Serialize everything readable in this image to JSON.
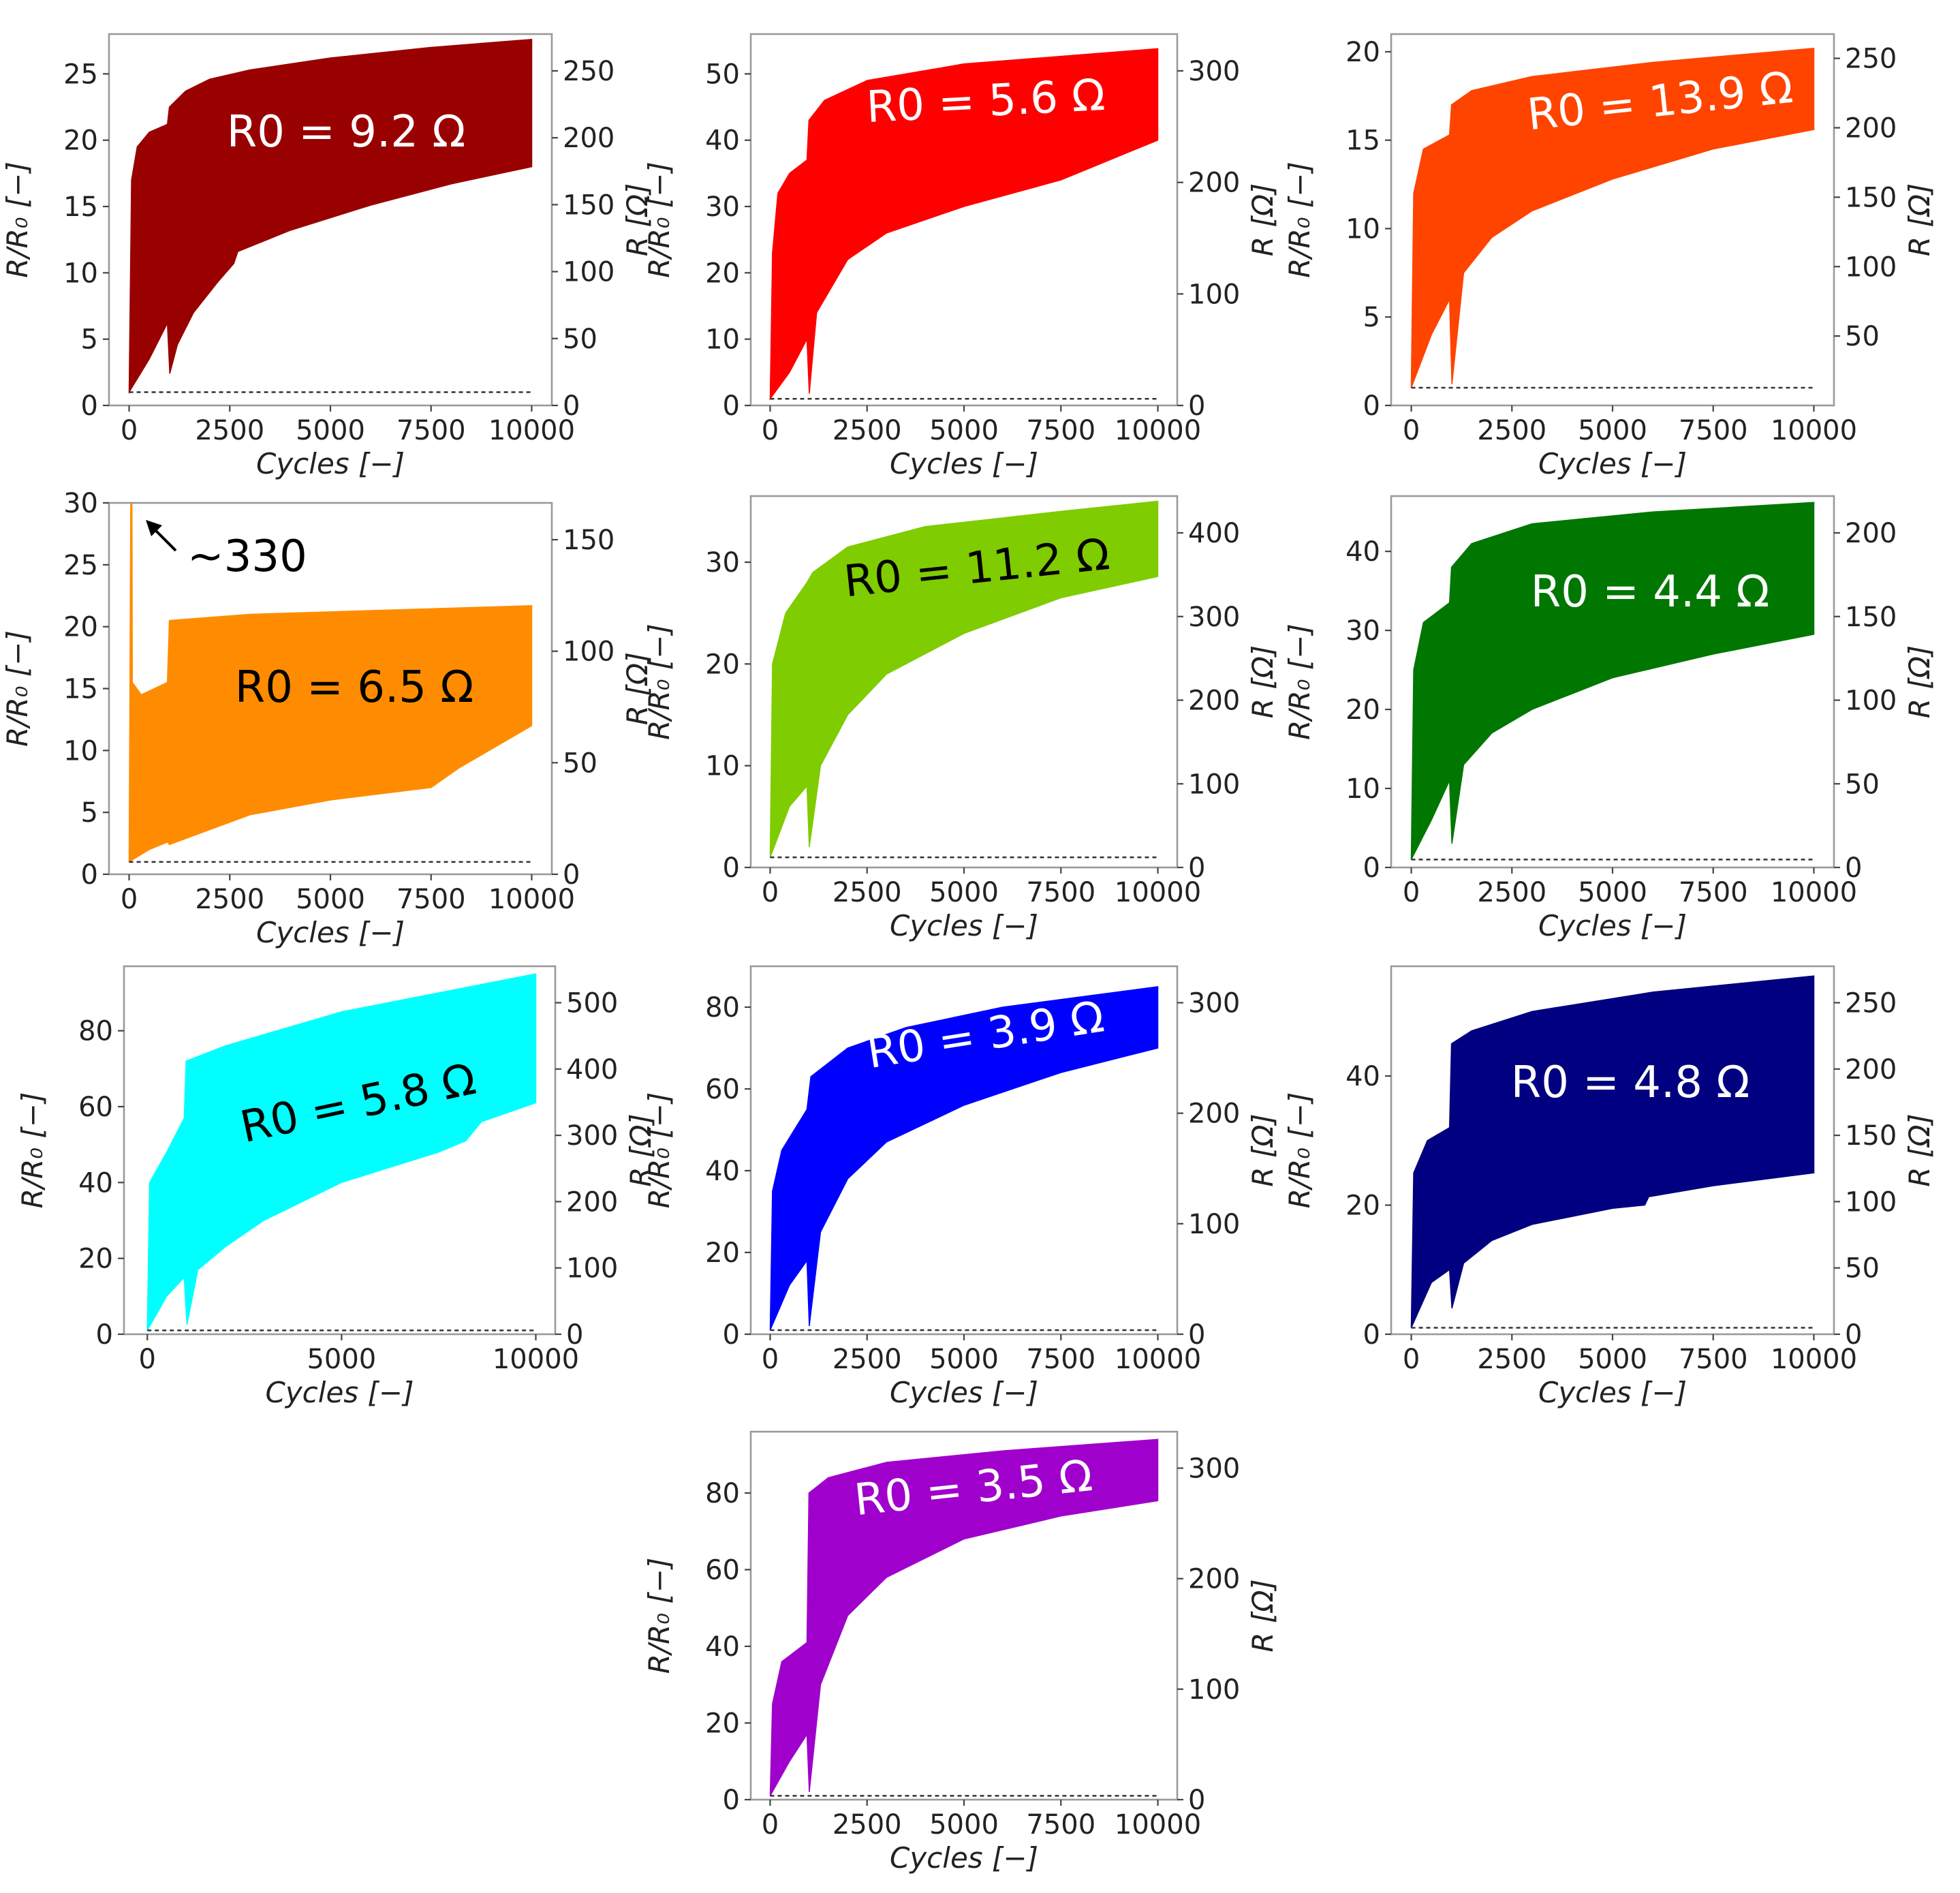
{
  "chart_data": [
    {
      "type": "area",
      "r0_label": "R0 = 9.2 Ω",
      "annotation_color": "white",
      "color": "#990000",
      "xlabel": "Cycles [−]",
      "ylabel": "R/R₀ [−]",
      "y2label": "R [Ω]",
      "xlim": [
        -500,
        10500
      ],
      "xticks": [
        "0",
        "2500",
        "5000",
        "7500",
        "10000"
      ],
      "ylim": [
        0,
        28
      ],
      "yticks": [
        "0",
        "5",
        "10",
        "15",
        "20",
        "25"
      ],
      "y2ticks": [
        "0",
        "50",
        "100",
        "150",
        "200",
        "250"
      ],
      "upper_envelope": [
        [
          0,
          1
        ],
        [
          60,
          17
        ],
        [
          200,
          19.5
        ],
        [
          500,
          20.6
        ],
        [
          950,
          21.2
        ],
        [
          1000,
          22.5
        ],
        [
          1400,
          23.7
        ],
        [
          2000,
          24.6
        ],
        [
          3000,
          25.3
        ],
        [
          5000,
          26.2
        ],
        [
          7500,
          27
        ],
        [
          10000,
          27.6
        ]
      ],
      "lower_envelope": [
        [
          0,
          1
        ],
        [
          500,
          3.5
        ],
        [
          950,
          6.2
        ],
        [
          1010,
          2.4
        ],
        [
          1200,
          4.6
        ],
        [
          1600,
          7
        ],
        [
          2200,
          9.3
        ],
        [
          2600,
          10.7
        ],
        [
          2700,
          11.6
        ],
        [
          4000,
          13.2
        ],
        [
          6000,
          15.1
        ],
        [
          8000,
          16.7
        ],
        [
          10000,
          18
        ]
      ],
      "baseline": 1
    },
    {
      "type": "area",
      "r0_label": "R0 = 5.6 Ω",
      "annotation_color": "white",
      "color": "#ff0000",
      "xlabel": "Cycles [−]",
      "ylabel": "R/R₀ [−]",
      "y2label": "R [Ω]",
      "xlim": [
        -500,
        10500
      ],
      "xticks": [
        "0",
        "2500",
        "5000",
        "7500",
        "10000"
      ],
      "ylim": [
        0,
        56
      ],
      "yticks": [
        "0",
        "10",
        "20",
        "30",
        "40",
        "50"
      ],
      "y2ticks": [
        "0",
        "100",
        "200",
        "300"
      ],
      "upper_envelope": [
        [
          0,
          1
        ],
        [
          60,
          23
        ],
        [
          200,
          32
        ],
        [
          500,
          35
        ],
        [
          950,
          37
        ],
        [
          1000,
          43
        ],
        [
          1400,
          46
        ],
        [
          2500,
          49
        ],
        [
          5000,
          51.5
        ],
        [
          10000,
          53.8
        ]
      ],
      "lower_envelope": [
        [
          0,
          1
        ],
        [
          500,
          5
        ],
        [
          950,
          10
        ],
        [
          1010,
          1.8
        ],
        [
          1200,
          14
        ],
        [
          2000,
          22
        ],
        [
          3000,
          26
        ],
        [
          5000,
          30
        ],
        [
          7500,
          34
        ],
        [
          10000,
          40
        ]
      ],
      "baseline": 1
    },
    {
      "type": "area",
      "r0_label": "R0 = 13.9 Ω",
      "annotation_color": "white",
      "color": "#ff4400",
      "xlabel": "Cycles [−]",
      "ylabel": "R/R₀ [−]",
      "y2label": "R [Ω]",
      "xlim": [
        -500,
        10500
      ],
      "xticks": [
        "0",
        "2500",
        "5000",
        "7500",
        "10000"
      ],
      "ylim": [
        0,
        21
      ],
      "yticks": [
        "0",
        "5",
        "10",
        "15",
        "20"
      ],
      "y2ticks": [
        "50",
        "100",
        "150",
        "200",
        "250"
      ],
      "upper_envelope": [
        [
          0,
          1
        ],
        [
          60,
          12
        ],
        [
          300,
          14.5
        ],
        [
          950,
          15.3
        ],
        [
          1000,
          17
        ],
        [
          1500,
          17.8
        ],
        [
          3000,
          18.6
        ],
        [
          6000,
          19.4
        ],
        [
          10000,
          20.2
        ]
      ],
      "lower_envelope": [
        [
          0,
          1
        ],
        [
          500,
          4
        ],
        [
          950,
          6
        ],
        [
          1010,
          1.2
        ],
        [
          1300,
          7.5
        ],
        [
          2000,
          9.5
        ],
        [
          3000,
          11
        ],
        [
          5000,
          12.8
        ],
        [
          7500,
          14.5
        ],
        [
          10000,
          15.6
        ]
      ],
      "baseline": 1
    },
    {
      "type": "area",
      "r0_label": "R0 = 6.5 Ω",
      "annotation_color": "black",
      "color": "#ff8c00",
      "xlabel": "Cycles [−]",
      "ylabel": "R/R₀ [−]",
      "y2label": "R [Ω]",
      "xlim": [
        -500,
        10500
      ],
      "xticks": [
        "0",
        "2500",
        "5000",
        "7500",
        "10000"
      ],
      "ylim": [
        0,
        30
      ],
      "yticks": [
        "0",
        "5",
        "10",
        "15",
        "20",
        "25",
        "30"
      ],
      "y2ticks": [
        "0",
        "50",
        "100",
        "150"
      ],
      "upper_envelope": [
        [
          0,
          1
        ],
        [
          40,
          30
        ],
        [
          70,
          30
        ],
        [
          80,
          15.5
        ],
        [
          300,
          14.5
        ],
        [
          950,
          15.5
        ],
        [
          1000,
          20.5
        ],
        [
          3000,
          21
        ],
        [
          6000,
          21.3
        ],
        [
          10000,
          21.7
        ]
      ],
      "lower_envelope": [
        [
          0,
          1
        ],
        [
          500,
          2
        ],
        [
          950,
          2.6
        ],
        [
          1000,
          2.4
        ],
        [
          3000,
          4.8
        ],
        [
          5000,
          6
        ],
        [
          7500,
          7
        ],
        [
          8200,
          8.6
        ],
        [
          10000,
          12
        ]
      ],
      "baseline": 1,
      "callout": "~330"
    },
    {
      "type": "area",
      "r0_label": "R0 = 11.2 Ω",
      "annotation_color": "black",
      "color": "#7fcc00",
      "xlabel": "Cycles [−]",
      "ylabel": "R/R₀ [−]",
      "y2label": "R [Ω]",
      "xlim": [
        -500,
        10500
      ],
      "xticks": [
        "0",
        "2500",
        "5000",
        "7500",
        "10000"
      ],
      "ylim": [
        0,
        36.5
      ],
      "yticks": [
        "0",
        "10",
        "20",
        "30"
      ],
      "y2ticks": [
        "0",
        "100",
        "200",
        "300",
        "400"
      ],
      "upper_envelope": [
        [
          0,
          1
        ],
        [
          60,
          20
        ],
        [
          400,
          25
        ],
        [
          950,
          28
        ],
        [
          1100,
          29
        ],
        [
          2000,
          31.5
        ],
        [
          4000,
          33.5
        ],
        [
          7500,
          35
        ],
        [
          10000,
          36
        ]
      ],
      "lower_envelope": [
        [
          0,
          1
        ],
        [
          500,
          6
        ],
        [
          950,
          8
        ],
        [
          1010,
          2
        ],
        [
          1300,
          10
        ],
        [
          2000,
          15
        ],
        [
          3000,
          19
        ],
        [
          5000,
          23
        ],
        [
          7500,
          26.5
        ],
        [
          10000,
          28.6
        ]
      ],
      "baseline": 1
    },
    {
      "type": "area",
      "r0_label": "R0 = 4.4 Ω",
      "annotation_color": "white",
      "color": "#007700",
      "xlabel": "Cycles [−]",
      "ylabel": "R/R₀ [−]",
      "y2label": "R [Ω]",
      "xlim": [
        -500,
        10500
      ],
      "xticks": [
        "0",
        "2500",
        "5000",
        "7500",
        "10000"
      ],
      "ylim": [
        0,
        47
      ],
      "yticks": [
        "0",
        "10",
        "20",
        "30",
        "40"
      ],
      "y2ticks": [
        "0",
        "50",
        "100",
        "150",
        "200"
      ],
      "upper_envelope": [
        [
          0,
          1
        ],
        [
          60,
          25
        ],
        [
          300,
          31
        ],
        [
          950,
          33.5
        ],
        [
          1000,
          38
        ],
        [
          1500,
          41
        ],
        [
          3000,
          43.5
        ],
        [
          6000,
          45
        ],
        [
          10000,
          46.2
        ]
      ],
      "lower_envelope": [
        [
          0,
          1
        ],
        [
          500,
          6
        ],
        [
          950,
          11
        ],
        [
          1010,
          3
        ],
        [
          1300,
          13
        ],
        [
          2000,
          17
        ],
        [
          3000,
          20
        ],
        [
          5000,
          24
        ],
        [
          7500,
          27
        ],
        [
          10000,
          29.5
        ]
      ],
      "baseline": 1
    },
    {
      "type": "area",
      "r0_label": "R0 = 5.8 Ω",
      "annotation_color": "black",
      "color": "#00ffff",
      "xlabel": "Cycles [−]",
      "ylabel": "R/R₀ [−]",
      "y2label": "R [Ω]",
      "xlim": [
        -600,
        10500
      ],
      "xticks": [
        "0",
        "5000",
        "10000"
      ],
      "ylim": [
        0,
        97
      ],
      "yticks": [
        "0",
        "20",
        "40",
        "60",
        "80"
      ],
      "y2ticks": [
        "0",
        "100",
        "200",
        "300",
        "400",
        "500"
      ],
      "upper_envelope": [
        [
          0,
          1
        ],
        [
          60,
          40
        ],
        [
          500,
          48
        ],
        [
          950,
          57
        ],
        [
          1000,
          72
        ],
        [
          2000,
          76
        ],
        [
          3000,
          79
        ],
        [
          5000,
          85
        ],
        [
          7500,
          90
        ],
        [
          10000,
          95
        ]
      ],
      "lower_envelope": [
        [
          0,
          1
        ],
        [
          500,
          10
        ],
        [
          950,
          15
        ],
        [
          1020,
          2.5
        ],
        [
          1300,
          17
        ],
        [
          2000,
          23
        ],
        [
          3000,
          30
        ],
        [
          5000,
          40
        ],
        [
          7500,
          48
        ],
        [
          8200,
          51
        ],
        [
          8600,
          56
        ],
        [
          10000,
          61
        ]
      ],
      "baseline": 1
    },
    {
      "type": "area",
      "r0_label": "R0 = 3.9 Ω",
      "annotation_color": "white",
      "color": "#0000ff",
      "xlabel": "Cycles [−]",
      "ylabel": "R/R₀ [−]",
      "y2label": "R [Ω]",
      "xlim": [
        -500,
        10500
      ],
      "xticks": [
        "0",
        "2500",
        "5000",
        "7500",
        "10000"
      ],
      "ylim": [
        0,
        90
      ],
      "yticks": [
        "0",
        "20",
        "40",
        "60",
        "80"
      ],
      "y2ticks": [
        "0",
        "100",
        "200",
        "300"
      ],
      "upper_envelope": [
        [
          0,
          1
        ],
        [
          60,
          35
        ],
        [
          300,
          45
        ],
        [
          950,
          55
        ],
        [
          1050,
          63
        ],
        [
          2000,
          70
        ],
        [
          3500,
          75
        ],
        [
          6000,
          80
        ],
        [
          10000,
          85
        ]
      ],
      "lower_envelope": [
        [
          0,
          1
        ],
        [
          500,
          12
        ],
        [
          950,
          18
        ],
        [
          1010,
          2
        ],
        [
          1300,
          25
        ],
        [
          2000,
          38
        ],
        [
          3000,
          47
        ],
        [
          5000,
          56
        ],
        [
          7500,
          64
        ],
        [
          10000,
          70
        ]
      ],
      "baseline": 1
    },
    {
      "type": "area",
      "r0_label": "R0 = 4.8 Ω",
      "annotation_color": "white",
      "color": "#000080",
      "xlabel": "Cycles [−]",
      "ylabel": "R/R₀ [−]",
      "y2label": "R [Ω]",
      "xlim": [
        -500,
        10500
      ],
      "xticks": [
        "0",
        "2500",
        "5000",
        "7500",
        "10000"
      ],
      "ylim": [
        0,
        57
      ],
      "yticks": [
        "0",
        "20",
        "40"
      ],
      "y2ticks": [
        "0",
        "50",
        "100",
        "150",
        "200",
        "250"
      ],
      "upper_envelope": [
        [
          0,
          1
        ],
        [
          60,
          25
        ],
        [
          400,
          30
        ],
        [
          950,
          32
        ],
        [
          1000,
          45
        ],
        [
          1500,
          47
        ],
        [
          3000,
          50
        ],
        [
          6000,
          53
        ],
        [
          10000,
          55.5
        ]
      ],
      "lower_envelope": [
        [
          0,
          1
        ],
        [
          500,
          8
        ],
        [
          950,
          10
        ],
        [
          1010,
          4
        ],
        [
          1300,
          11
        ],
        [
          2000,
          14.5
        ],
        [
          3000,
          17
        ],
        [
          5000,
          19.5
        ],
        [
          5800,
          20
        ],
        [
          5900,
          21.3
        ],
        [
          7500,
          23
        ],
        [
          10000,
          25
        ]
      ],
      "baseline": 1
    },
    {
      "type": "area",
      "r0_label": "R0 = 3.5 Ω",
      "annotation_color": "white",
      "color": "#a000cc",
      "xlabel": "Cycles [−]",
      "ylabel": "R/R₀ [−]",
      "y2label": "R [Ω]",
      "xlim": [
        -500,
        10500
      ],
      "xticks": [
        "0",
        "2500",
        "5000",
        "7500",
        "10000"
      ],
      "ylim": [
        0,
        96
      ],
      "yticks": [
        "0",
        "20",
        "40",
        "60",
        "80"
      ],
      "y2ticks": [
        "0",
        "100",
        "200",
        "300"
      ],
      "upper_envelope": [
        [
          0,
          1
        ],
        [
          60,
          25
        ],
        [
          300,
          36
        ],
        [
          950,
          41
        ],
        [
          1000,
          80
        ],
        [
          1500,
          84
        ],
        [
          3000,
          88
        ],
        [
          6000,
          91
        ],
        [
          10000,
          94
        ]
      ],
      "lower_envelope": [
        [
          0,
          1
        ],
        [
          500,
          10
        ],
        [
          950,
          17
        ],
        [
          1010,
          2
        ],
        [
          1300,
          30
        ],
        [
          2000,
          48
        ],
        [
          3000,
          58
        ],
        [
          5000,
          68
        ],
        [
          7500,
          74
        ],
        [
          10000,
          78
        ]
      ],
      "baseline": 1
    }
  ]
}
